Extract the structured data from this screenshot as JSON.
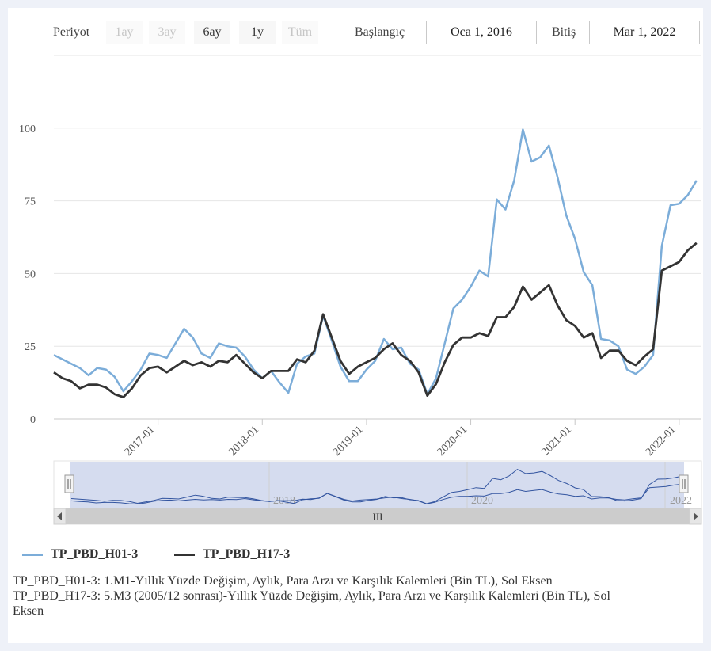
{
  "toolbar": {
    "period_label": "Periyot",
    "range_buttons": [
      {
        "label": "1ay",
        "enabled": false
      },
      {
        "label": "3ay",
        "enabled": false
      },
      {
        "label": "6ay",
        "enabled": true
      },
      {
        "label": "1y",
        "enabled": true
      },
      {
        "label": "Tüm",
        "enabled": false
      }
    ],
    "start_label": "Başlangıç",
    "start_value": "Oca 1, 2016",
    "end_label": "Bitiş",
    "end_value": "Mar 1, 2022"
  },
  "navigator": {
    "year_labels": [
      "2018",
      "2020",
      "2022"
    ],
    "scrollbar_grip": "III"
  },
  "legend": [
    {
      "name": "TP_PBD_H01-3",
      "color": "#7cadd9"
    },
    {
      "name": "TP_PBD_H17-3",
      "color": "#333333"
    }
  ],
  "descriptions": [
    "TP_PBD_H01-3: 1.M1-Yıllık Yüzde Değişim, Aylık, Para Arzı ve Karşılık Kalemleri (Bin TL), Sol Eksen",
    "TP_PBD_H17-3: 5.M3 (2005/12 sonrası)-Yıllık Yüzde Değişim, Aylık, Para Arzı ve Karşılık Kalemleri (Bin TL), Sol Eksen"
  ],
  "chart_data": {
    "type": "line",
    "x": [
      "2016-01",
      "2016-02",
      "2016-03",
      "2016-04",
      "2016-05",
      "2016-06",
      "2016-07",
      "2016-08",
      "2016-09",
      "2016-10",
      "2016-11",
      "2016-12",
      "2017-01",
      "2017-02",
      "2017-03",
      "2017-04",
      "2017-05",
      "2017-06",
      "2017-07",
      "2017-08",
      "2017-09",
      "2017-10",
      "2017-11",
      "2017-12",
      "2018-01",
      "2018-02",
      "2018-03",
      "2018-04",
      "2018-05",
      "2018-06",
      "2018-07",
      "2018-08",
      "2018-09",
      "2018-10",
      "2018-11",
      "2018-12",
      "2019-01",
      "2019-02",
      "2019-03",
      "2019-04",
      "2019-05",
      "2019-06",
      "2019-07",
      "2019-08",
      "2019-09",
      "2019-10",
      "2019-11",
      "2019-12",
      "2020-01",
      "2020-02",
      "2020-03",
      "2020-04",
      "2020-05",
      "2020-06",
      "2020-07",
      "2020-08",
      "2020-09",
      "2020-10",
      "2020-11",
      "2020-12",
      "2021-01",
      "2021-02",
      "2021-03",
      "2021-04",
      "2021-05",
      "2021-06",
      "2021-07",
      "2021-08",
      "2021-09",
      "2021-10",
      "2021-11",
      "2021-12",
      "2022-01",
      "2022-02",
      "2022-03"
    ],
    "series": [
      {
        "name": "TP_PBD_H01-3",
        "color": "#7cadd9",
        "values": [
          22,
          20.5,
          19,
          17.5,
          15,
          17.5,
          17,
          14.5,
          9.5,
          13,
          17,
          22.5,
          22,
          21,
          26,
          31,
          28,
          22.5,
          21,
          26,
          25,
          24.5,
          21.5,
          17,
          14,
          16.5,
          12.5,
          9,
          19,
          21.5,
          22.5,
          35.5,
          27,
          18,
          13,
          13,
          17,
          20,
          27.5,
          24,
          24.5,
          19,
          17,
          8.5,
          14,
          26,
          38,
          41,
          45.5,
          51,
          49,
          75.5,
          72,
          82,
          99.5,
          88.5,
          90,
          94,
          83,
          70,
          62,
          50.5,
          46,
          27.5,
          27,
          25,
          17,
          15.5,
          18,
          22,
          59.5,
          73.5,
          74,
          77,
          82
        ]
      },
      {
        "name": "TP_PBD_H17-3",
        "color": "#333333",
        "values": [
          16,
          14,
          13,
          10.5,
          11.8,
          11.8,
          10.8,
          8.5,
          7.5,
          10.5,
          15,
          17.5,
          18,
          16,
          18,
          20,
          18.5,
          19.5,
          18,
          20,
          19.5,
          22,
          19,
          16,
          14,
          16.5,
          16.5,
          16.5,
          20.5,
          19.5,
          23.5,
          36,
          28,
          20,
          15.5,
          18,
          19.5,
          21,
          24,
          26,
          22,
          20,
          16,
          8,
          12,
          19.5,
          25.5,
          28,
          28,
          29.5,
          28.5,
          35,
          35,
          38.5,
          45.5,
          41,
          43.5,
          46,
          39,
          34,
          32,
          28,
          29.5,
          21,
          23.5,
          23.5,
          20,
          18.5,
          21.5,
          24,
          51,
          52.5,
          54,
          58,
          60.5
        ]
      }
    ],
    "x_tick_labels": [
      "2017-01",
      "2018-01",
      "2019-01",
      "2020-01",
      "2021-01",
      "2022-01"
    ],
    "y_ticks": [
      0,
      25,
      50,
      75,
      100
    ],
    "ylim": [
      0,
      125
    ],
    "grid": true,
    "legend_position": "bottom-left"
  }
}
